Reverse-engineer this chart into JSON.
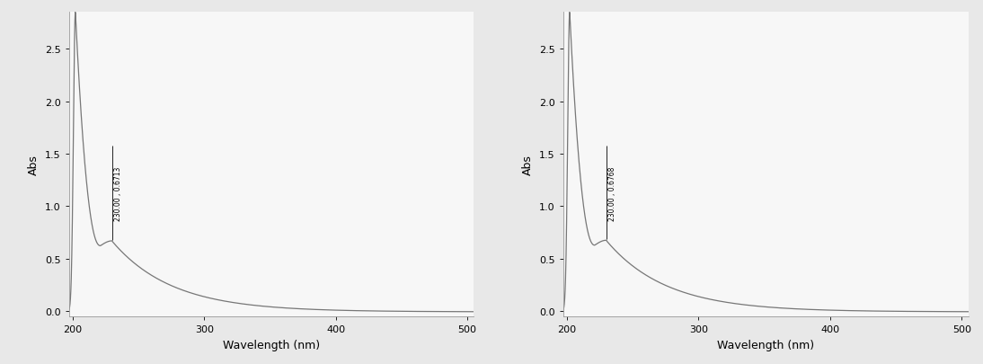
{
  "plot1": {
    "annotation": "230.00 , 0.6713",
    "ann_x": 230,
    "ann_y": 0.6713,
    "ann_line_top": 1.58
  },
  "plot2": {
    "annotation": "230.00 , 0.6768",
    "ann_x": 230,
    "ann_y": 0.6768,
    "ann_line_top": 1.58
  },
  "xlabel": "Wavelength (nm)",
  "ylabel": "Abs",
  "xlim": [
    197,
    505
  ],
  "ylim": [
    -0.05,
    2.85
  ],
  "xticks": [
    200,
    300,
    400,
    500
  ],
  "yticks": [
    0.0,
    0.5,
    1.0,
    1.5,
    2.0,
    2.5
  ],
  "line_color": "#777777",
  "bg_color": "#e8e8e8",
  "plot_bg": "#f7f7f7",
  "ann_fontsize": 5.5,
  "xlabel_fontsize": 9,
  "ylabel_fontsize": 9,
  "tick_fontsize": 8,
  "line_width": 0.9,
  "peak_wl": 202,
  "peak_abs": 2.85,
  "valley_wl": 221,
  "shoulder_wl": 230,
  "decay_rate": 0.022
}
